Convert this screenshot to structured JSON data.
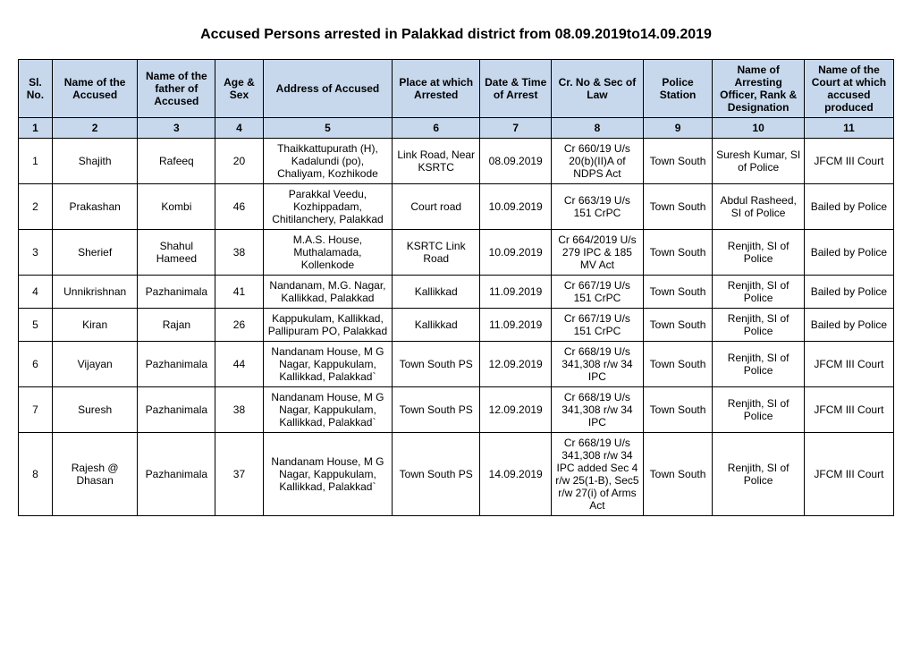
{
  "title": "Accused Persons arrested in   Palakkad   district from   08.09.2019to14.09.2019",
  "headers": [
    "Sl. No.",
    "Name of the Accused",
    "Name of the father of Accused",
    "Age & Sex",
    "Address of Accused",
    "Place at which Arrested",
    "Date & Time of Arrest",
    "Cr. No & Sec of Law",
    "Police Station",
    "Name of Arresting Officer, Rank & Designation",
    "Name of the Court at which accused produced"
  ],
  "colnums": [
    "1",
    "2",
    "3",
    "4",
    "5",
    "6",
    "7",
    "8",
    "9",
    "10",
    "11"
  ],
  "rows": [
    {
      "sl": "1",
      "name": "Shajith",
      "father": "Rafeeq",
      "age": "20",
      "addr": "Thaikkattupurath (H), Kadalundi (po), Chaliyam, Kozhikode",
      "place": "Link Road, Near KSRTC",
      "date": "08.09.2019",
      "crno": "Cr 660/19 U/s 20(b)(II)A of NDPS Act",
      "ps": "Town South",
      "officer": "Suresh Kumar, SI of Police",
      "court": "JFCM III Court"
    },
    {
      "sl": "2",
      "name": "Prakashan",
      "father": "Kombi",
      "age": "46",
      "addr": "Parakkal Veedu, Kozhippadam, Chitilanchery, Palakkad",
      "place": "Court road",
      "date": "10.09.2019",
      "crno": "Cr 663/19 U/s 151 CrPC",
      "ps": "Town South",
      "officer": "Abdul Rasheed, SI of Police",
      "court": "Bailed by Police"
    },
    {
      "sl": "3",
      "name": "Sherief",
      "father": "Shahul Hameed",
      "age": "38",
      "addr": "M.A.S. House, Muthalamada, Kollenkode",
      "place": "KSRTC Link Road",
      "date": "10.09.2019",
      "crno": "Cr 664/2019 U/s 279 IPC & 185 MV Act",
      "ps": "Town South",
      "officer": "Renjith, SI of Police",
      "court": "Bailed by Police"
    },
    {
      "sl": "4",
      "name": "Unnikrishnan",
      "father": "Pazhanimala",
      "age": "41",
      "addr": "Nandanam, M.G. Nagar, Kallikkad, Palakkad",
      "place": "Kallikkad",
      "date": "11.09.2019",
      "crno": "Cr 667/19 U/s 151 CrPC",
      "ps": "Town South",
      "officer": "Renjith, SI of Police",
      "court": "Bailed by Police"
    },
    {
      "sl": "5",
      "name": "Kiran",
      "father": "Rajan",
      "age": "26",
      "addr": "Kappukulam, Kallikkad, Pallipuram PO, Palakkad",
      "place": "Kallikkad",
      "date": "11.09.2019",
      "crno": "Cr 667/19 U/s 151 CrPC",
      "ps": "Town South",
      "officer": "Renjith, SI of Police",
      "court": "Bailed by Police"
    },
    {
      "sl": "6",
      "name": "Vijayan",
      "father": "Pazhanimala",
      "age": "44",
      "addr": "Nandanam House, M G Nagar, Kappukulam, Kallikkad, Palakkad`",
      "place": "Town South PS",
      "date": "12.09.2019",
      "crno": "Cr 668/19 U/s 341,308 r/w 34 IPC",
      "ps": "Town South",
      "officer": "Renjith, SI of Police",
      "court": "JFCM III Court"
    },
    {
      "sl": "7",
      "name": "Suresh",
      "father": "Pazhanimala",
      "age": "38",
      "addr": "Nandanam House, M G Nagar, Kappukulam, Kallikkad, Palakkad`",
      "place": "Town South PS",
      "date": "12.09.2019",
      "crno": "Cr 668/19 U/s 341,308 r/w 34 IPC",
      "ps": "Town South",
      "officer": "Renjith, SI of Police",
      "court": "JFCM III Court"
    },
    {
      "sl": "8",
      "name": "Rajesh @ Dhasan",
      "father": "Pazhanimala",
      "age": "37",
      "addr": "Nandanam House, M G Nagar, Kappukulam, Kallikkad, Palakkad`",
      "place": "Town South PS",
      "date": "14.09.2019",
      "crno": "Cr 668/19 U/s 341,308 r/w 34 IPC added Sec 4 r/w 25(1-B), Sec5 r/w 27(i) of Arms Act",
      "ps": "Town South",
      "officer": "Renjith, SI of Police",
      "court": "JFCM III Court"
    }
  ],
  "style": {
    "header_bg": "#c7d8ed",
    "border_color": "#000000",
    "font_family": "Arial",
    "title_fontsize": 16,
    "cell_fontsize": 12
  }
}
